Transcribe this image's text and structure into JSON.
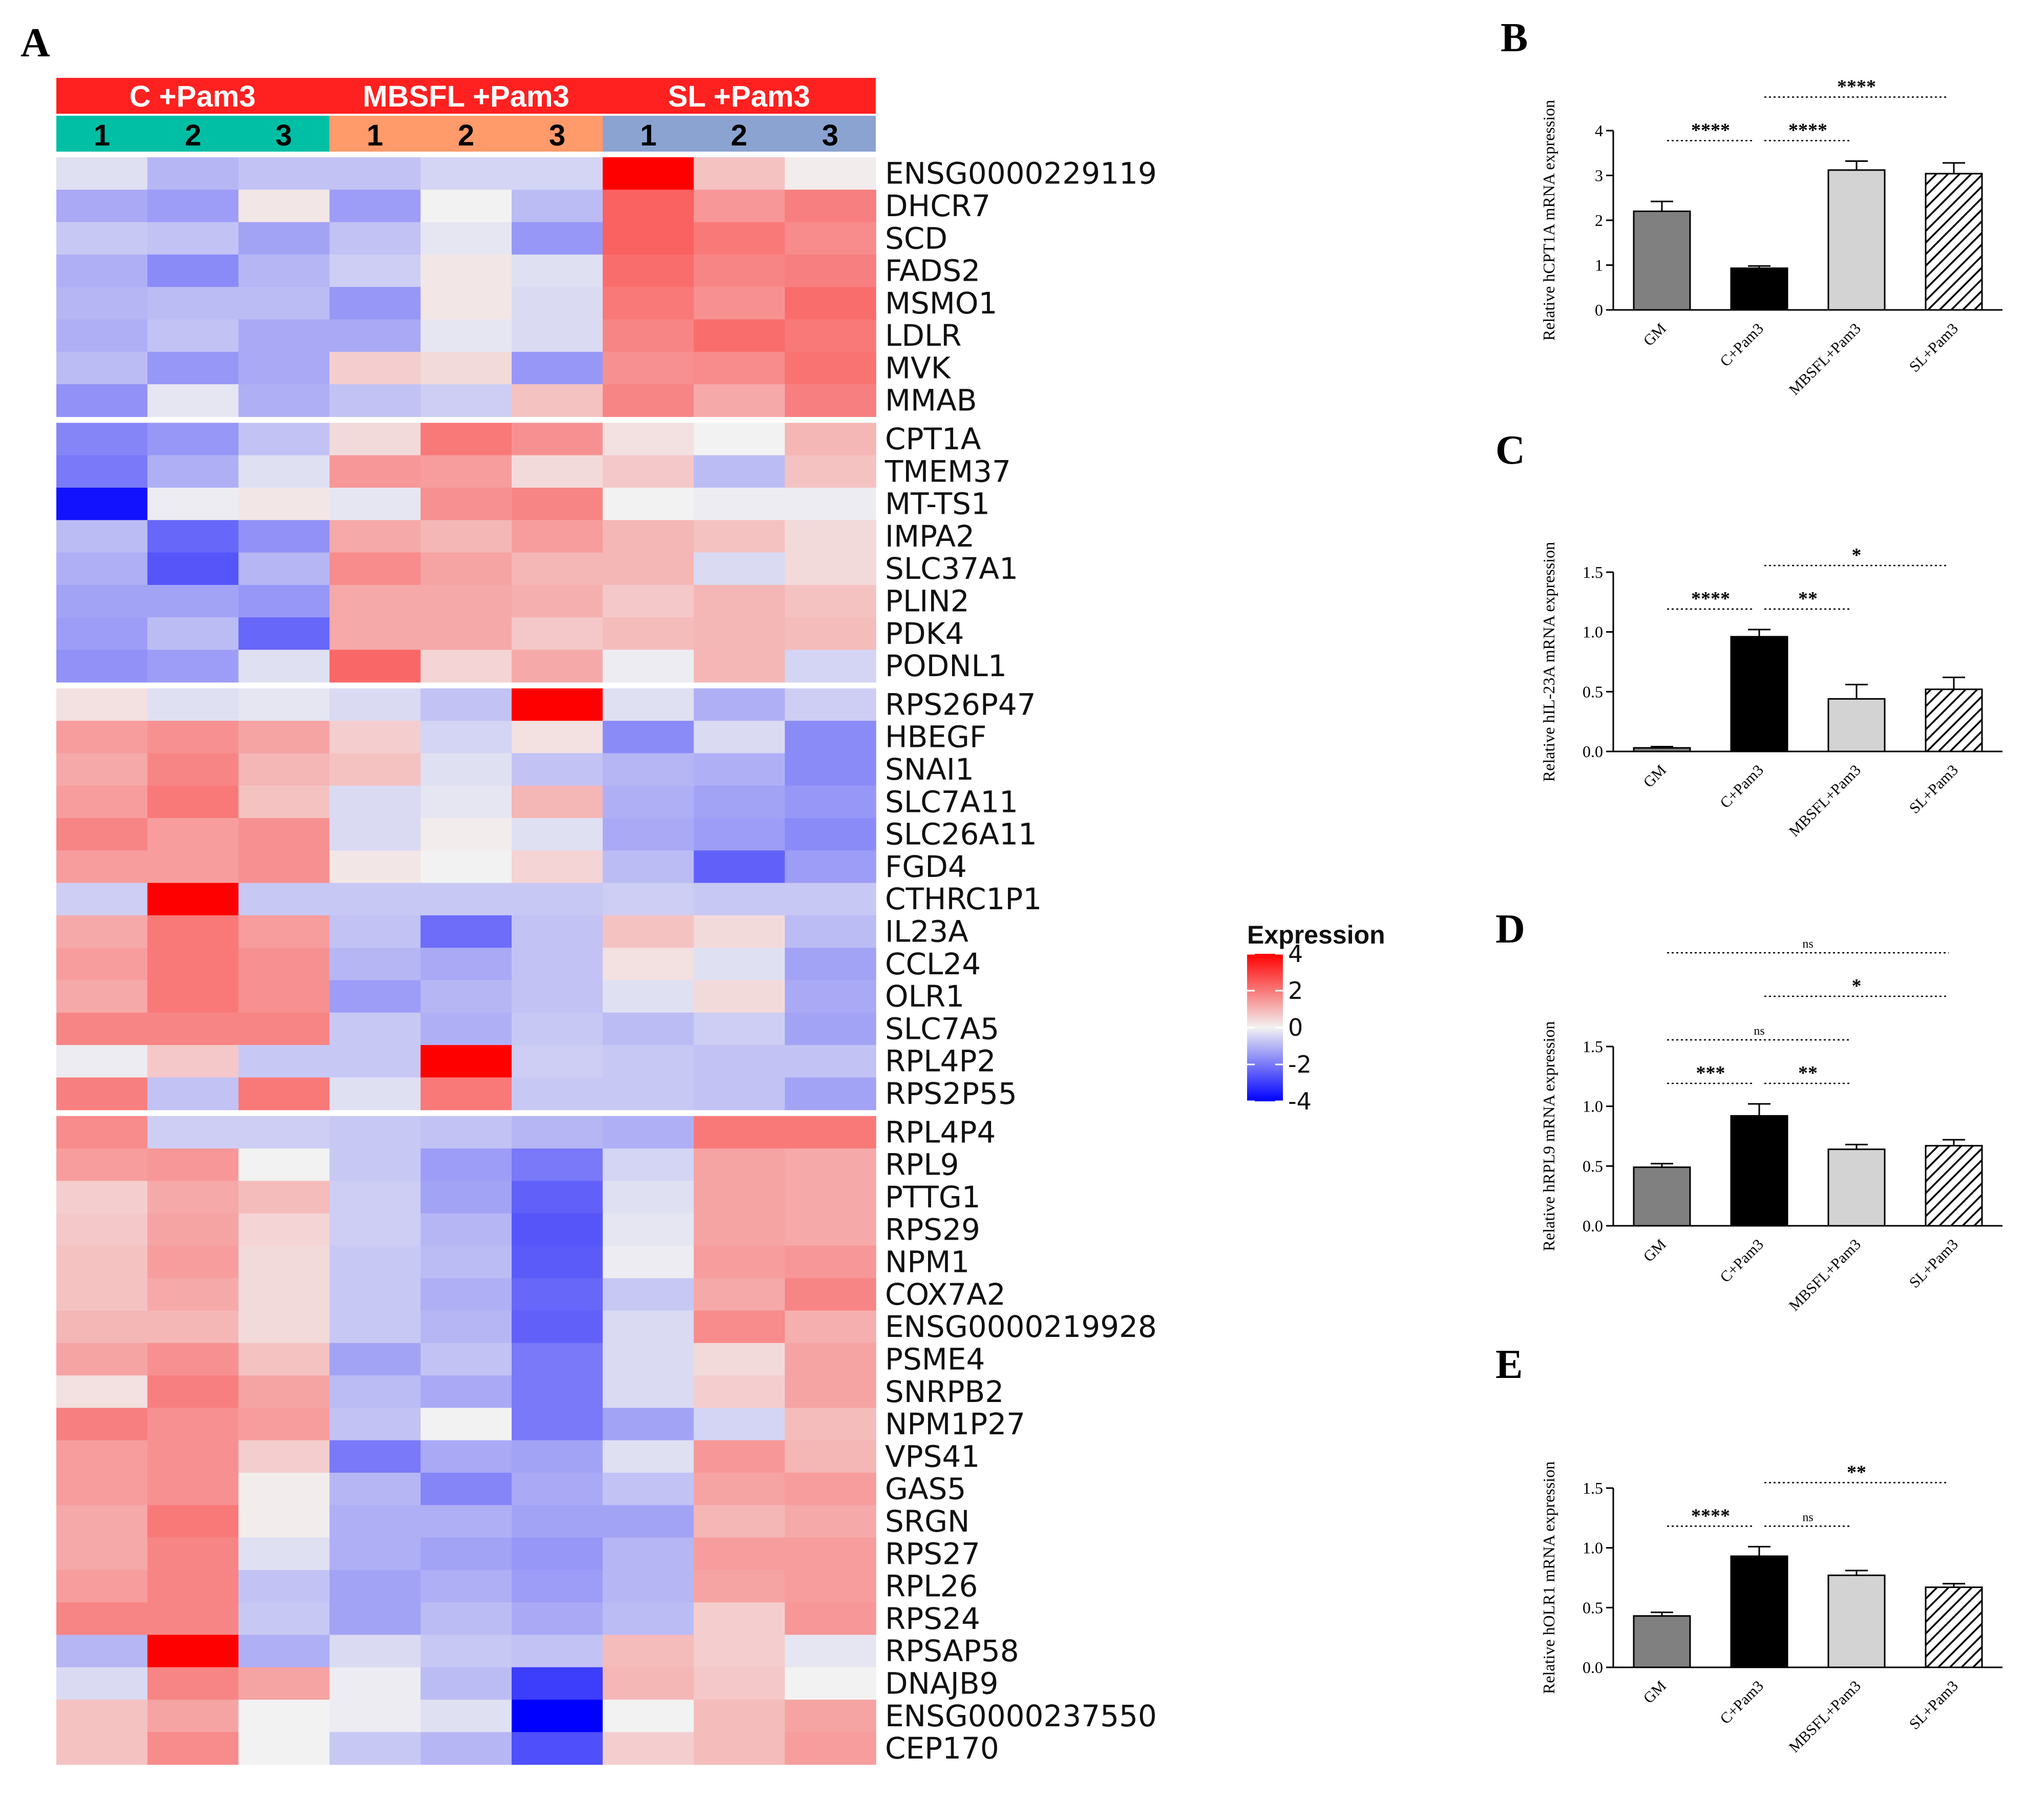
{
  "panel_labels": {
    "A": "A",
    "B": "B",
    "C": "C",
    "D": "D",
    "E": "E"
  },
  "chart_data": [
    {
      "type": "heatmap",
      "panel": "A",
      "groups": [
        "C +Pam3",
        "MBSFL +Pam3",
        "SL +Pam3"
      ],
      "replicates": [
        "1",
        "2",
        "3",
        "1",
        "2",
        "3",
        "1",
        "2",
        "3"
      ],
      "color_scale": {
        "min": -4,
        "max": 4,
        "low": "#0000ff",
        "mid": "#f2f2f2",
        "high": "#ff0000"
      },
      "legend": {
        "title": "Expression",
        "ticks": [
          "4",
          "2",
          "0",
          "-2",
          "-4"
        ],
        "values": [
          4,
          2,
          0,
          -2,
          -4
        ]
      },
      "clusters": [
        {
          "genes": [
            "ENSG0000229119",
            "DHCR7",
            "SCD",
            "FADS2",
            "MSMO1",
            "LDLR",
            "MVK",
            "MMAB"
          ],
          "values": [
            [
              -0.3,
              -1.0,
              -0.8,
              -0.8,
              -0.5,
              -0.5,
              4.0,
              0.8,
              0.1
            ],
            [
              -1.2,
              -1.4,
              0.2,
              -1.4,
              0.0,
              -0.9,
              2.4,
              1.5,
              1.9
            ],
            [
              -0.7,
              -0.8,
              -1.3,
              -0.8,
              -0.2,
              -1.5,
              2.4,
              2.0,
              1.7
            ],
            [
              -1.1,
              -1.7,
              -1.0,
              -0.6,
              0.2,
              -0.3,
              2.2,
              1.8,
              1.9
            ],
            [
              -1.0,
              -0.9,
              -0.9,
              -1.5,
              0.2,
              -0.4,
              2.0,
              1.6,
              2.2
            ],
            [
              -1.1,
              -0.8,
              -1.2,
              -1.2,
              -0.2,
              -0.4,
              1.8,
              2.2,
              2.0
            ],
            [
              -0.9,
              -1.5,
              -1.2,
              0.6,
              0.4,
              -1.5,
              1.6,
              1.7,
              2.1
            ],
            [
              -1.6,
              -0.2,
              -1.1,
              -0.8,
              -0.6,
              0.8,
              1.8,
              1.2,
              1.9
            ]
          ]
        },
        {
          "genes": [
            "CPT1A",
            "TMEM37",
            "MT-TS1",
            "IMPA2",
            "SLC37A1",
            "PLIN2",
            "PDK4",
            "PODNL1"
          ],
          "values": [
            [
              -1.8,
              -1.5,
              -0.8,
              0.4,
              2.0,
              1.6,
              0.3,
              0.0,
              1.0
            ],
            [
              -2.0,
              -1.1,
              -0.3,
              1.5,
              1.4,
              0.4,
              0.7,
              -0.9,
              0.8
            ],
            [
              -3.7,
              -0.1,
              0.2,
              -0.2,
              1.6,
              1.8,
              0.0,
              -0.1,
              -0.1
            ],
            [
              -0.9,
              -2.3,
              -1.6,
              1.2,
              1.0,
              1.4,
              1.0,
              0.8,
              0.4
            ],
            [
              -1.1,
              -2.6,
              -1.0,
              1.7,
              1.3,
              1.0,
              1.0,
              -0.4,
              0.4
            ],
            [
              -1.3,
              -1.3,
              -1.5,
              1.2,
              1.2,
              1.1,
              0.7,
              1.0,
              0.8
            ],
            [
              -1.4,
              -0.9,
              -2.3,
              1.2,
              1.2,
              0.7,
              0.9,
              1.0,
              0.9
            ],
            [
              -1.6,
              -1.4,
              -0.3,
              2.3,
              0.5,
              1.2,
              -0.1,
              1.0,
              -0.5
            ]
          ]
        },
        {
          "genes": [
            "RPS26P47",
            "HBEGF",
            "SNAI1",
            "SLC7A11",
            "SLC26A11",
            "FGD4",
            "CTHRC1P1",
            "IL23A",
            "CCL24",
            "OLR1",
            "SLC7A5",
            "RPL4P2",
            "RPS2P55"
          ],
          "values": [
            [
              0.3,
              -0.3,
              -0.2,
              -0.4,
              -0.8,
              4.0,
              -0.3,
              -1.1,
              -0.6
            ],
            [
              1.4,
              1.6,
              1.3,
              0.6,
              -0.5,
              0.3,
              -1.7,
              -0.4,
              -1.7
            ],
            [
              1.2,
              1.8,
              1.0,
              0.8,
              -0.3,
              -0.8,
              -1.0,
              -1.1,
              -1.7
            ],
            [
              1.4,
              2.0,
              0.8,
              -0.4,
              -0.2,
              1.0,
              -1.1,
              -1.3,
              -1.5
            ],
            [
              1.8,
              1.4,
              1.6,
              -0.4,
              0.1,
              -0.3,
              -1.2,
              -1.4,
              -1.7
            ],
            [
              1.4,
              1.4,
              1.6,
              0.2,
              0.0,
              0.5,
              -0.9,
              -2.4,
              -1.4
            ],
            [
              -0.6,
              4.0,
              -0.7,
              -0.7,
              -0.7,
              -0.7,
              -0.6,
              -0.7,
              -0.7
            ],
            [
              1.2,
              2.0,
              1.4,
              -0.8,
              -2.2,
              -0.8,
              0.8,
              0.4,
              -0.9
            ],
            [
              1.4,
              2.0,
              1.6,
              -1.0,
              -1.2,
              -0.8,
              0.3,
              -0.3,
              -1.3
            ],
            [
              1.2,
              2.0,
              1.6,
              -1.4,
              -1.0,
              -0.8,
              -0.3,
              0.4,
              -1.2
            ],
            [
              1.8,
              1.8,
              1.8,
              -0.7,
              -1.1,
              -0.7,
              -0.9,
              -0.6,
              -1.3
            ],
            [
              -0.1,
              0.7,
              -0.7,
              -0.7,
              4.0,
              -0.6,
              -0.7,
              -0.8,
              -0.8
            ],
            [
              1.9,
              -0.8,
              2.0,
              -0.3,
              2.0,
              -0.7,
              -0.7,
              -0.8,
              -1.3
            ]
          ]
        },
        {
          "genes": [
            "RPL4P4",
            "RPL9",
            "PTTG1",
            "RPS29",
            "NPM1",
            "COX7A2",
            "ENSG0000219928",
            "PSME4",
            "SNRPB2",
            "NPM1P27",
            "VPS41",
            "GAS5",
            "SRGN",
            "RPS27",
            "RPL26",
            "RPS24",
            "RPSAP58",
            "DNAJB9",
            "ENSG0000237550",
            "CEP170"
          ],
          "values": [
            [
              1.7,
              -0.6,
              -0.6,
              -0.7,
              -0.8,
              -1.0,
              -1.1,
              2.0,
              2.0
            ],
            [
              1.4,
              1.5,
              0.0,
              -0.7,
              -1.4,
              -2.0,
              -0.5,
              1.3,
              1.2
            ],
            [
              0.6,
              1.2,
              0.9,
              -0.6,
              -1.3,
              -2.4,
              -0.3,
              1.3,
              1.2
            ],
            [
              0.7,
              1.3,
              0.5,
              -0.6,
              -1.0,
              -2.6,
              -0.2,
              1.3,
              1.2
            ],
            [
              0.8,
              1.4,
              0.4,
              -0.7,
              -0.9,
              -2.5,
              -0.1,
              1.4,
              1.5
            ],
            [
              0.8,
              1.2,
              0.4,
              -0.7,
              -1.1,
              -2.3,
              -0.7,
              1.2,
              1.8
            ],
            [
              1.0,
              1.0,
              0.4,
              -0.7,
              -1.0,
              -2.4,
              -0.4,
              1.7,
              1.1
            ],
            [
              1.3,
              1.6,
              0.8,
              -1.3,
              -0.8,
              -2.0,
              -0.4,
              0.4,
              1.3
            ],
            [
              0.3,
              1.9,
              1.3,
              -0.9,
              -1.2,
              -2.0,
              -0.4,
              0.6,
              1.3
            ],
            [
              1.9,
              1.6,
              1.4,
              -0.8,
              0.0,
              -2.0,
              -1.3,
              -0.5,
              0.9
            ],
            [
              1.4,
              1.6,
              0.6,
              -2.0,
              -1.2,
              -1.3,
              -0.3,
              1.5,
              1.0
            ],
            [
              1.4,
              1.6,
              0.1,
              -1.0,
              -1.8,
              -1.2,
              -0.8,
              1.3,
              1.4
            ],
            [
              1.2,
              2.0,
              0.1,
              -1.1,
              -1.1,
              -1.3,
              -1.3,
              1.0,
              1.2
            ],
            [
              1.2,
              1.8,
              -0.3,
              -1.1,
              -1.3,
              -1.5,
              -1.0,
              1.4,
              1.4
            ],
            [
              1.4,
              1.8,
              -0.8,
              -1.3,
              -1.1,
              -1.4,
              -1.0,
              1.3,
              1.4
            ],
            [
              1.8,
              1.8,
              -0.7,
              -1.3,
              -0.9,
              -1.2,
              -0.9,
              0.6,
              1.5
            ],
            [
              -1.0,
              4.0,
              -1.1,
              -0.4,
              -0.7,
              -0.8,
              0.9,
              0.6,
              -0.2
            ],
            [
              -0.4,
              1.8,
              1.3,
              -0.1,
              -0.9,
              -3.0,
              1.0,
              0.7,
              0.0
            ],
            [
              0.8,
              1.3,
              0.0,
              -0.1,
              -0.3,
              -4.0,
              0.0,
              0.9,
              1.3
            ],
            [
              0.8,
              1.7,
              0.0,
              -0.7,
              -1.0,
              -2.7,
              0.6,
              0.9,
              1.4
            ]
          ]
        }
      ]
    },
    {
      "type": "bar",
      "panel": "B",
      "ylabel": "Relative hCPT1A mRNA expression",
      "categories": [
        "GM",
        "C+Pam3",
        "MBSFL+Pam3",
        "SL+Pam3"
      ],
      "values": [
        2.2,
        0.93,
        3.12,
        3.04
      ],
      "errors": [
        0.22,
        0.05,
        0.2,
        0.24
      ],
      "ylim": [
        0,
        4
      ],
      "yticks": [
        "0",
        "1",
        "2",
        "3",
        "4"
      ],
      "fills": [
        "#808080",
        "#000000",
        "#d3d3d3",
        "hatch"
      ],
      "significance": [
        {
          "from": 0,
          "to": 1,
          "label": "****",
          "level": 1
        },
        {
          "from": 1,
          "to": 2,
          "label": "****",
          "level": 1
        },
        {
          "from": 1,
          "to": 3,
          "label": "****",
          "level": 2
        }
      ]
    },
    {
      "type": "bar",
      "panel": "C",
      "ylabel": "Relative hIL-23A mRNA expression",
      "categories": [
        "GM",
        "C+Pam3",
        "MBSFL+Pam3",
        "SL+Pam3"
      ],
      "values": [
        0.03,
        0.96,
        0.44,
        0.52
      ],
      "errors": [
        0.01,
        0.06,
        0.12,
        0.1
      ],
      "ylim": [
        0,
        1.5
      ],
      "yticks": [
        "0.0",
        "0.5",
        "1.0",
        "1.5"
      ],
      "fills": [
        "#808080",
        "#000000",
        "#d3d3d3",
        "hatch"
      ],
      "significance": [
        {
          "from": 0,
          "to": 1,
          "label": "****",
          "level": 1
        },
        {
          "from": 1,
          "to": 2,
          "label": "**",
          "level": 1
        },
        {
          "from": 1,
          "to": 3,
          "label": "*",
          "level": 2
        }
      ]
    },
    {
      "type": "bar",
      "panel": "D",
      "ylabel": "Relative hRPL9 mRNA expression",
      "categories": [
        "GM",
        "C+Pam3",
        "MBSFL+Pam3",
        "SL+Pam3"
      ],
      "values": [
        0.49,
        0.92,
        0.64,
        0.67
      ],
      "errors": [
        0.03,
        0.1,
        0.04,
        0.05
      ],
      "ylim": [
        0,
        1.5
      ],
      "yticks": [
        "0.0",
        "0.5",
        "1.0",
        "1.5"
      ],
      "fills": [
        "#808080",
        "#000000",
        "#d3d3d3",
        "hatch"
      ],
      "significance": [
        {
          "from": 0,
          "to": 1,
          "label": "***",
          "level": 1
        },
        {
          "from": 1,
          "to": 2,
          "label": "**",
          "level": 1
        },
        {
          "from": 0,
          "to": 2,
          "label": "ns",
          "level": 2
        },
        {
          "from": 1,
          "to": 3,
          "label": "*",
          "level": 3
        },
        {
          "from": 0,
          "to": 3,
          "label": "ns",
          "level": 4
        }
      ]
    },
    {
      "type": "bar",
      "panel": "E",
      "ylabel": "Relative hOLR1 mRNA expression",
      "categories": [
        "GM",
        "C+Pam3",
        "MBSFL+Pam3",
        "SL+Pam3"
      ],
      "values": [
        0.43,
        0.93,
        0.77,
        0.67
      ],
      "errors": [
        0.03,
        0.08,
        0.04,
        0.03
      ],
      "ylim": [
        0,
        1.5
      ],
      "yticks": [
        "0.0",
        "0.5",
        "1.0",
        "1.5"
      ],
      "fills": [
        "#808080",
        "#000000",
        "#d3d3d3",
        "hatch"
      ],
      "significance": [
        {
          "from": 0,
          "to": 1,
          "label": "****",
          "level": 1
        },
        {
          "from": 1,
          "to": 2,
          "label": "ns",
          "level": 1
        },
        {
          "from": 1,
          "to": 3,
          "label": "**",
          "level": 2
        }
      ]
    }
  ]
}
